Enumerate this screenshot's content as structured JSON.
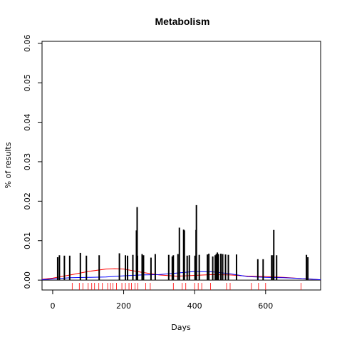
{
  "chart_data": {
    "type": "bar",
    "title": "Metabolism",
    "xlabel": "Days",
    "ylabel": "% of results",
    "xlim": [
      -30,
      755
    ],
    "ylim": [
      -0.0025,
      0.0605
    ],
    "x_ticks": [
      0,
      200,
      400,
      600
    ],
    "x_tick_labels": [
      "0",
      "200",
      "400",
      "600"
    ],
    "y_ticks": [
      0.0,
      0.01,
      0.02,
      0.03,
      0.04,
      0.05,
      0.06
    ],
    "y_tick_labels": [
      "0.00",
      "0.01",
      "0.02",
      "0.03",
      "0.04",
      "0.05",
      "0.06"
    ],
    "bars": {
      "x": [
        14,
        19,
        33,
        48,
        78,
        95,
        131,
        188,
        205,
        211,
        226,
        236,
        238,
        239,
        252,
        256,
        277,
        289,
        327,
        337,
        340,
        353,
        357,
        369,
        371,
        379,
        385,
        401,
        404,
        405,
        413,
        436,
        440,
        451,
        458,
        461,
        464,
        467,
        474,
        479,
        487,
        495,
        518,
        578,
        593,
        617,
        621,
        623,
        631,
        715,
        719
      ],
      "values": [
        0.0058,
        0.0063,
        0.0062,
        0.0062,
        0.0069,
        0.0062,
        0.0063,
        0.0068,
        0.0063,
        0.0062,
        0.0064,
        0.0126,
        0.0185,
        0.0062,
        0.0066,
        0.0063,
        0.0057,
        0.0066,
        0.0064,
        0.006,
        0.0063,
        0.0066,
        0.0133,
        0.0128,
        0.0126,
        0.0062,
        0.0063,
        0.0062,
        0.0127,
        0.019,
        0.0064,
        0.0065,
        0.0067,
        0.006,
        0.0063,
        0.0066,
        0.007,
        0.0066,
        0.0067,
        0.0066,
        0.0065,
        0.0064,
        0.0065,
        0.0053,
        0.0053,
        0.0063,
        0.0063,
        0.0127,
        0.0063,
        0.0064,
        0.0058
      ],
      "color": "#000000"
    },
    "series": [
      {
        "color": "#ff0000",
        "x": [
          -30,
          0,
          50,
          100,
          150,
          175,
          200,
          250,
          300,
          350,
          400,
          450,
          500,
          550,
          600,
          650,
          700,
          755
        ],
        "y": [
          0.0002,
          0.0005,
          0.0013,
          0.0022,
          0.0028,
          0.0029,
          0.0028,
          0.002,
          0.0013,
          0.001,
          0.0012,
          0.0014,
          0.0013,
          0.001,
          0.0009,
          0.0007,
          0.0004,
          0.0001
        ]
      },
      {
        "color": "#0000ff",
        "x": [
          -30,
          0,
          50,
          100,
          150,
          200,
          250,
          300,
          350,
          400,
          450,
          500,
          550,
          600,
          650,
          700,
          755
        ],
        "y": [
          0.0001,
          0.0003,
          0.0006,
          0.0007,
          0.0008,
          0.0011,
          0.0013,
          0.0014,
          0.0018,
          0.0022,
          0.0021,
          0.0016,
          0.0009,
          0.0007,
          0.0006,
          0.0004,
          0.0001
        ]
      }
    ],
    "rug": {
      "color": "#ff0000",
      "x": [
        55,
        75,
        85,
        100,
        110,
        118,
        130,
        140,
        155,
        163,
        170,
        180,
        195,
        205,
        215,
        222,
        232,
        240,
        262,
        275,
        340,
        365,
        375,
        400,
        410,
        420,
        445,
        490,
        500,
        560,
        580,
        600,
        700
      ]
    },
    "black_line_y": 0,
    "grid": false,
    "legend": "none"
  }
}
